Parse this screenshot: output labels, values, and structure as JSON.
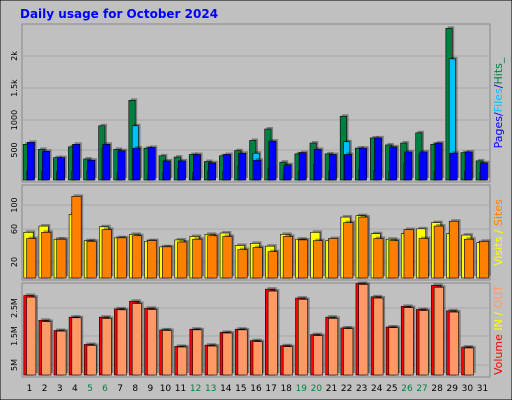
{
  "chart_data": [
    {
      "type": "bar",
      "title": "Daily usage for October 2024",
      "categories": [
        "1",
        "2",
        "3",
        "4",
        "5",
        "6",
        "7",
        "8",
        "9",
        "10",
        "11",
        "12",
        "13",
        "14",
        "15",
        "16",
        "17",
        "18",
        "19",
        "20",
        "21",
        "22",
        "23",
        "24",
        "25",
        "26",
        "27",
        "28",
        "29",
        "30",
        "31"
      ],
      "weekend_days": [
        5,
        6,
        12,
        13,
        19,
        20,
        26,
        27
      ],
      "ylabel_parts": [
        "Pages",
        "/",
        "Files",
        "/",
        "Hits",
        "_"
      ],
      "yticks": [
        500,
        1000,
        "1.5k",
        "2k"
      ],
      "ylim": [
        0,
        2400
      ],
      "grid": true,
      "series": [
        {
          "name": "Hits",
          "color": "#008040",
          "values": [
            560,
            480,
            350,
            520,
            330,
            850,
            480,
            1250,
            500,
            380,
            360,
            400,
            290,
            380,
            460,
            620,
            800,
            280,
            410,
            580,
            410,
            1000,
            500,
            660,
            550,
            580,
            740,
            560,
            2380,
            430,
            300
          ]
        },
        {
          "name": "Files",
          "color": "#00c0ff",
          "values": [
            140,
            140,
            130,
            140,
            140,
            500,
            120,
            850,
            80,
            110,
            180,
            110,
            140,
            140,
            220,
            420,
            180,
            100,
            130,
            240,
            140,
            600,
            160,
            150,
            130,
            260,
            400,
            130,
            1900,
            140,
            120
          ]
        },
        {
          "name": "Pages",
          "color": "#0000ff",
          "values": [
            590,
            450,
            350,
            560,
            310,
            560,
            460,
            500,
            510,
            300,
            300,
            400,
            270,
            400,
            420,
            310,
            610,
            240,
            430,
            480,
            400,
            400,
            500,
            660,
            520,
            440,
            440,
            580,
            420,
            440,
            270
          ]
        }
      ]
    },
    {
      "type": "bar",
      "categories": [
        "1",
        "2",
        "3",
        "4",
        "5",
        "6",
        "7",
        "8",
        "9",
        "10",
        "11",
        "12",
        "13",
        "14",
        "15",
        "16",
        "17",
        "18",
        "19",
        "20",
        "21",
        "22",
        "23",
        "24",
        "25",
        "26",
        "27",
        "28",
        "29",
        "30",
        "31"
      ],
      "ylabel_parts": [
        "Visits",
        " / ",
        "Sites"
      ],
      "yticks": [
        20,
        60,
        100
      ],
      "ylim": [
        0,
        130
      ],
      "grid": true,
      "series": [
        {
          "name": "Visits",
          "color": "#ffff00",
          "values": [
            66,
            75,
            56,
            92,
            54,
            74,
            58,
            63,
            53,
            45,
            55,
            60,
            63,
            65,
            47,
            50,
            46,
            63,
            56,
            66,
            54,
            88,
            90,
            64,
            56,
            64,
            71,
            80,
            64,
            62,
            51
          ]
        },
        {
          "name": "Sites",
          "color": "#ff8000",
          "values": [
            57,
            66,
            56,
            118,
            53,
            70,
            58,
            61,
            54,
            45,
            52,
            56,
            61,
            60,
            41,
            44,
            38,
            60,
            55,
            54,
            57,
            80,
            88,
            57,
            54,
            70,
            57,
            75,
            82,
            56,
            53
          ]
        }
      ]
    },
    {
      "type": "bar",
      "categories": [
        "1",
        "2",
        "3",
        "4",
        "5",
        "6",
        "7",
        "8",
        "9",
        "10",
        "11",
        "12",
        "13",
        "14",
        "15",
        "16",
        "17",
        "18",
        "19",
        "20",
        "21",
        "22",
        "23",
        "24",
        "25",
        "26",
        "27",
        "28",
        "29",
        "30",
        "31"
      ],
      "ylabel_parts": [
        "Volume",
        " ",
        "IN",
        " / ",
        "OUT"
      ],
      "yticks": [
        "5M",
        "1.5M",
        "2.5M"
      ],
      "ylim": [
        0,
        2800000
      ],
      "grid": true,
      "series": [
        {
          "name": "Volume",
          "color": "#ff0000",
          "values": [
            2500000,
            1720000,
            1400000,
            1820000,
            960000,
            1820000,
            2080000,
            2320000,
            2100000,
            1420000,
            900000,
            1440000,
            940000,
            1340000,
            1440000,
            1080000,
            2700000,
            920000,
            2420000,
            1270000,
            1820000,
            1480000,
            2880000,
            2460000,
            1510000,
            2160000,
            2060000,
            2820000,
            2020000,
            880000,
            0
          ]
        },
        {
          "name": "IN / OUT",
          "color": "#ff9966",
          "values": [
            2450000,
            1680000,
            1380000,
            1800000,
            930000,
            1780000,
            2050000,
            2250000,
            2060000,
            1400000,
            880000,
            1420000,
            910000,
            1320000,
            1420000,
            1050000,
            2640000,
            890000,
            2380000,
            1240000,
            1780000,
            1460000,
            2850000,
            2420000,
            1490000,
            2120000,
            2030000,
            2760000,
            1980000,
            850000,
            0
          ]
        }
      ]
    }
  ],
  "colors": {
    "background": "#c0c0c0",
    "title": "#0000ff",
    "weekday_label": "#000000",
    "weekend_label": "#008040",
    "label_hits": "#008040",
    "label_files": "#00c0ff",
    "label_pages": "#0000ff",
    "label_sites": "#ff8000",
    "label_visits": "#ffff00",
    "label_volume": "#ff0000",
    "label_in": "#ffff00",
    "label_out": "#ff9966"
  }
}
